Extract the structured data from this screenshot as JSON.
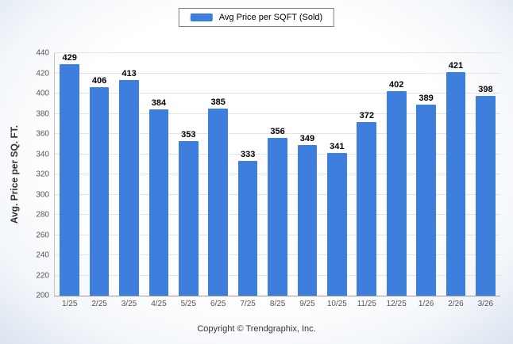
{
  "legend": {
    "label": "Avg Price per SQFT (Sold)",
    "swatch_color": "#3e7fdd"
  },
  "chart_data": {
    "type": "bar",
    "title": "",
    "xlabel": "",
    "ylabel": "Avg. Price per SQ. FT.",
    "ylim": [
      200,
      440
    ],
    "ytick_step": 20,
    "grid": true,
    "legend_position": "top",
    "bar_color": "#3e7fdd",
    "series_name": "Avg Price per SQFT (Sold)",
    "categories": [
      "1/25",
      "2/25",
      "3/25",
      "4/25",
      "5/25",
      "6/25",
      "7/25",
      "8/25",
      "9/25",
      "10/25",
      "11/25",
      "12/25",
      "1/26",
      "2/26",
      "3/26"
    ],
    "values": [
      429,
      406,
      413,
      384,
      353,
      385,
      333,
      356,
      349,
      341,
      372,
      402,
      389,
      421,
      398
    ]
  },
  "footer": {
    "copyright": "Copyright © Trendgraphix, Inc."
  }
}
